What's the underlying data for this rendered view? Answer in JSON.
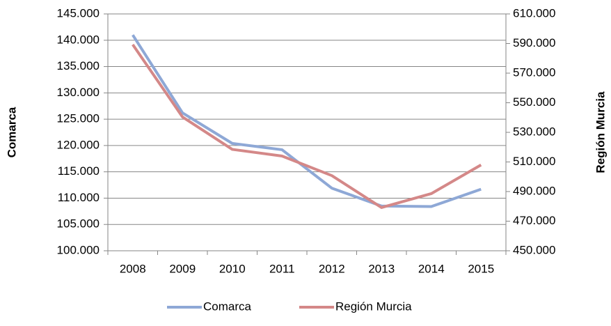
{
  "chart_data": {
    "type": "line",
    "categories": [
      "2008",
      "2009",
      "2010",
      "2011",
      "2012",
      "2013",
      "2014",
      "2015"
    ],
    "series": [
      {
        "name": "Comarca",
        "color": "#8ea8d6",
        "values": [
          141000,
          126200,
          120400,
          119200,
          111900,
          108500,
          108400,
          111700
        ]
      },
      {
        "name": "Región Murcia",
        "color": "#d48888",
        "axis": "y2",
        "values": [
          589300,
          540400,
          518500,
          514000,
          500800,
          479200,
          488600,
          508000
        ]
      }
    ],
    "ylabel": "Comarca",
    "y2label": "Región Murcia",
    "ylim": [
      100000,
      145000
    ],
    "yticks": [
      {
        "value": 100000,
        "label": "100.000"
      },
      {
        "value": 105000,
        "label": "105.000"
      },
      {
        "value": 110000,
        "label": "110.000"
      },
      {
        "value": 115000,
        "label": "115.000"
      },
      {
        "value": 120000,
        "label": "120.000"
      },
      {
        "value": 125000,
        "label": "125.000"
      },
      {
        "value": 130000,
        "label": "130.000"
      },
      {
        "value": 135000,
        "label": "135.000"
      },
      {
        "value": 140000,
        "label": "140.000"
      },
      {
        "value": 145000,
        "label": "145.000"
      }
    ],
    "y2lim": [
      450000,
      610000
    ],
    "y2ticks": [
      {
        "value": 450000,
        "label": "450.000"
      },
      {
        "value": 470000,
        "label": "470.000"
      },
      {
        "value": 490000,
        "label": "490.000"
      },
      {
        "value": 510000,
        "label": "510.000"
      },
      {
        "value": 530000,
        "label": "530.000"
      },
      {
        "value": 550000,
        "label": "550.000"
      },
      {
        "value": 570000,
        "label": "570.000"
      },
      {
        "value": 590000,
        "label": "590.000"
      },
      {
        "value": 610000,
        "label": "610.000"
      }
    ],
    "grid": true,
    "legend": "bottom"
  }
}
